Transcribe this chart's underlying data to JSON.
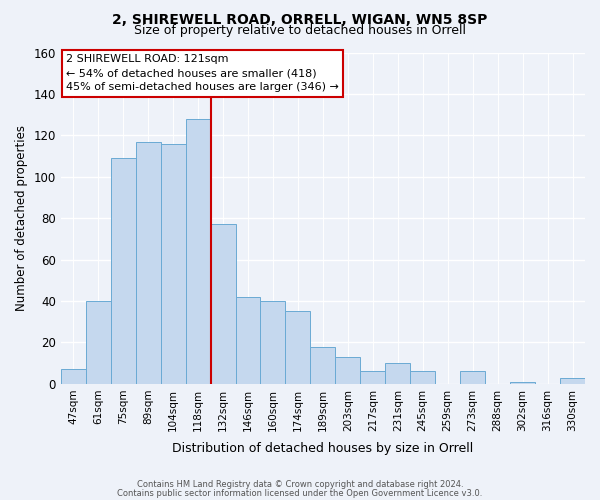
{
  "title1": "2, SHIREWELL ROAD, ORRELL, WIGAN, WN5 8SP",
  "title2": "Size of property relative to detached houses in Orrell",
  "xlabel": "Distribution of detached houses by size in Orrell",
  "ylabel": "Number of detached properties",
  "categories": [
    "47sqm",
    "61sqm",
    "75sqm",
    "89sqm",
    "104sqm",
    "118sqm",
    "132sqm",
    "146sqm",
    "160sqm",
    "174sqm",
    "189sqm",
    "203sqm",
    "217sqm",
    "231sqm",
    "245sqm",
    "259sqm",
    "273sqm",
    "288sqm",
    "302sqm",
    "316sqm",
    "330sqm"
  ],
  "values": [
    7,
    40,
    109,
    117,
    116,
    128,
    77,
    42,
    40,
    35,
    18,
    13,
    6,
    10,
    6,
    0,
    6,
    0,
    1,
    0,
    3
  ],
  "bar_color": "#c5d8ee",
  "bar_edge_color": "#6aaad4",
  "red_line_index": 5,
  "annotation_text": "2 SHIREWELL ROAD: 121sqm\n← 54% of detached houses are smaller (418)\n45% of semi-detached houses are larger (346) →",
  "annotation_box_color": "#ffffff",
  "annotation_box_edge": "#cc0000",
  "vline_color": "#cc0000",
  "ylim": [
    0,
    160
  ],
  "yticks": [
    0,
    20,
    40,
    60,
    80,
    100,
    120,
    140,
    160
  ],
  "footer1": "Contains HM Land Registry data © Crown copyright and database right 2024.",
  "footer2": "Contains public sector information licensed under the Open Government Licence v3.0.",
  "bg_color": "#eef2f9",
  "plot_bg_color": "#eef2f9",
  "title_fontsize": 10,
  "subtitle_fontsize": 9,
  "tick_fontsize": 7.5,
  "ylabel_fontsize": 8.5,
  "xlabel_fontsize": 9
}
